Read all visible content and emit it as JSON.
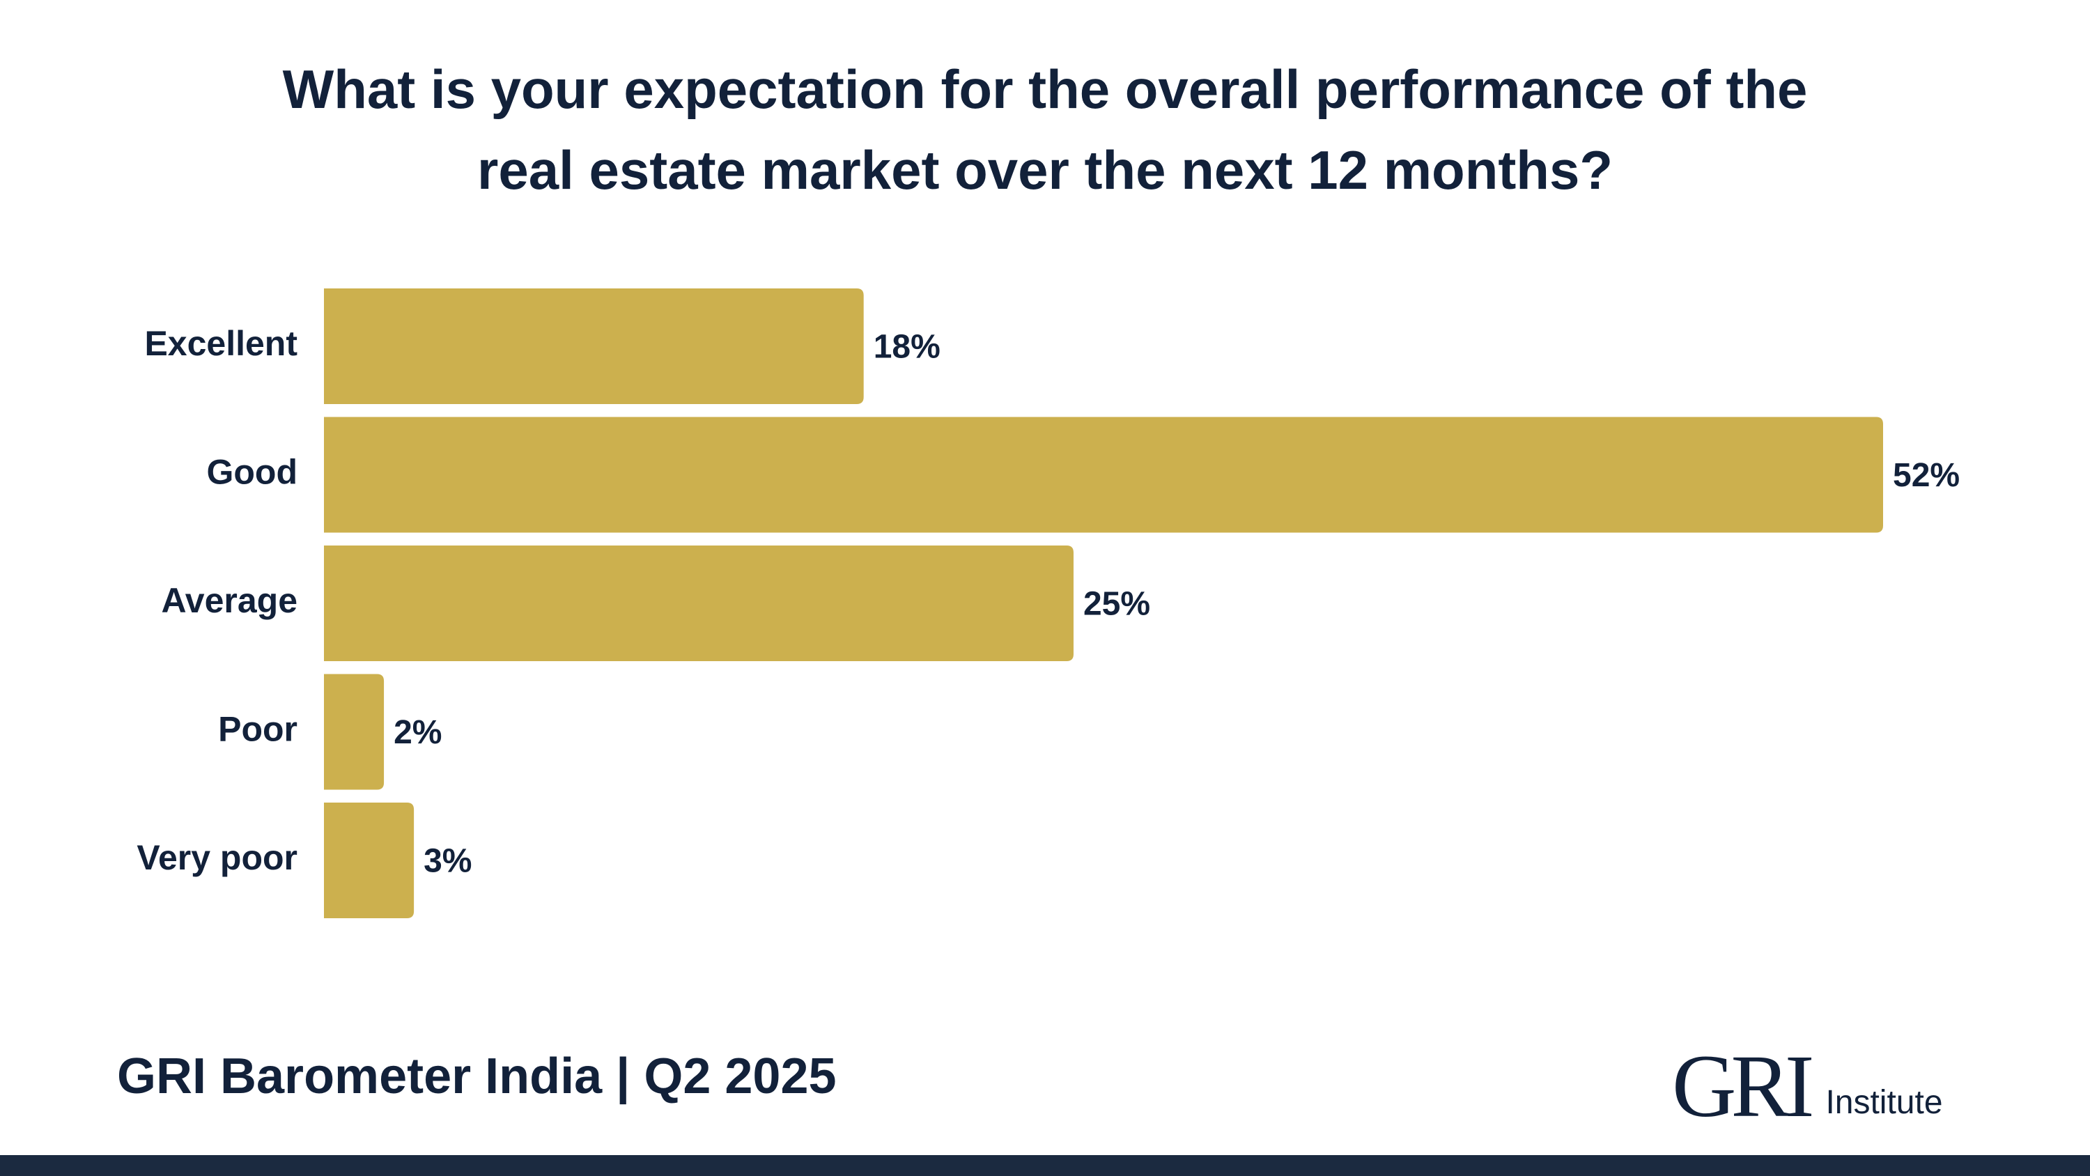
{
  "title_line1": "What is your expectation for the overall performance of the",
  "title_line2": "real estate market over the next 12 months?",
  "footer": {
    "title": "GRI Barometer India | Q2 2025",
    "logo_mark": "GRI",
    "logo_text": "Institute"
  },
  "colors": {
    "bar": "#CCB04E",
    "text": "#12213A",
    "footer_bar": "#1B2A40"
  },
  "chart_data": {
    "type": "bar",
    "orientation": "horizontal",
    "categories": [
      "Excellent",
      "Good",
      "Average",
      "Poor",
      "Very poor"
    ],
    "values": [
      18,
      52,
      25,
      2,
      3
    ],
    "value_labels": [
      "18%",
      "52%",
      "25%",
      "2%",
      "3%"
    ],
    "unit": "%",
    "title": "What is your expectation for the overall performance of the real estate market over the next 12 months?",
    "xlabel": "",
    "ylabel": "",
    "xlim": [
      0,
      52
    ],
    "grid": false,
    "legend": "none"
  }
}
